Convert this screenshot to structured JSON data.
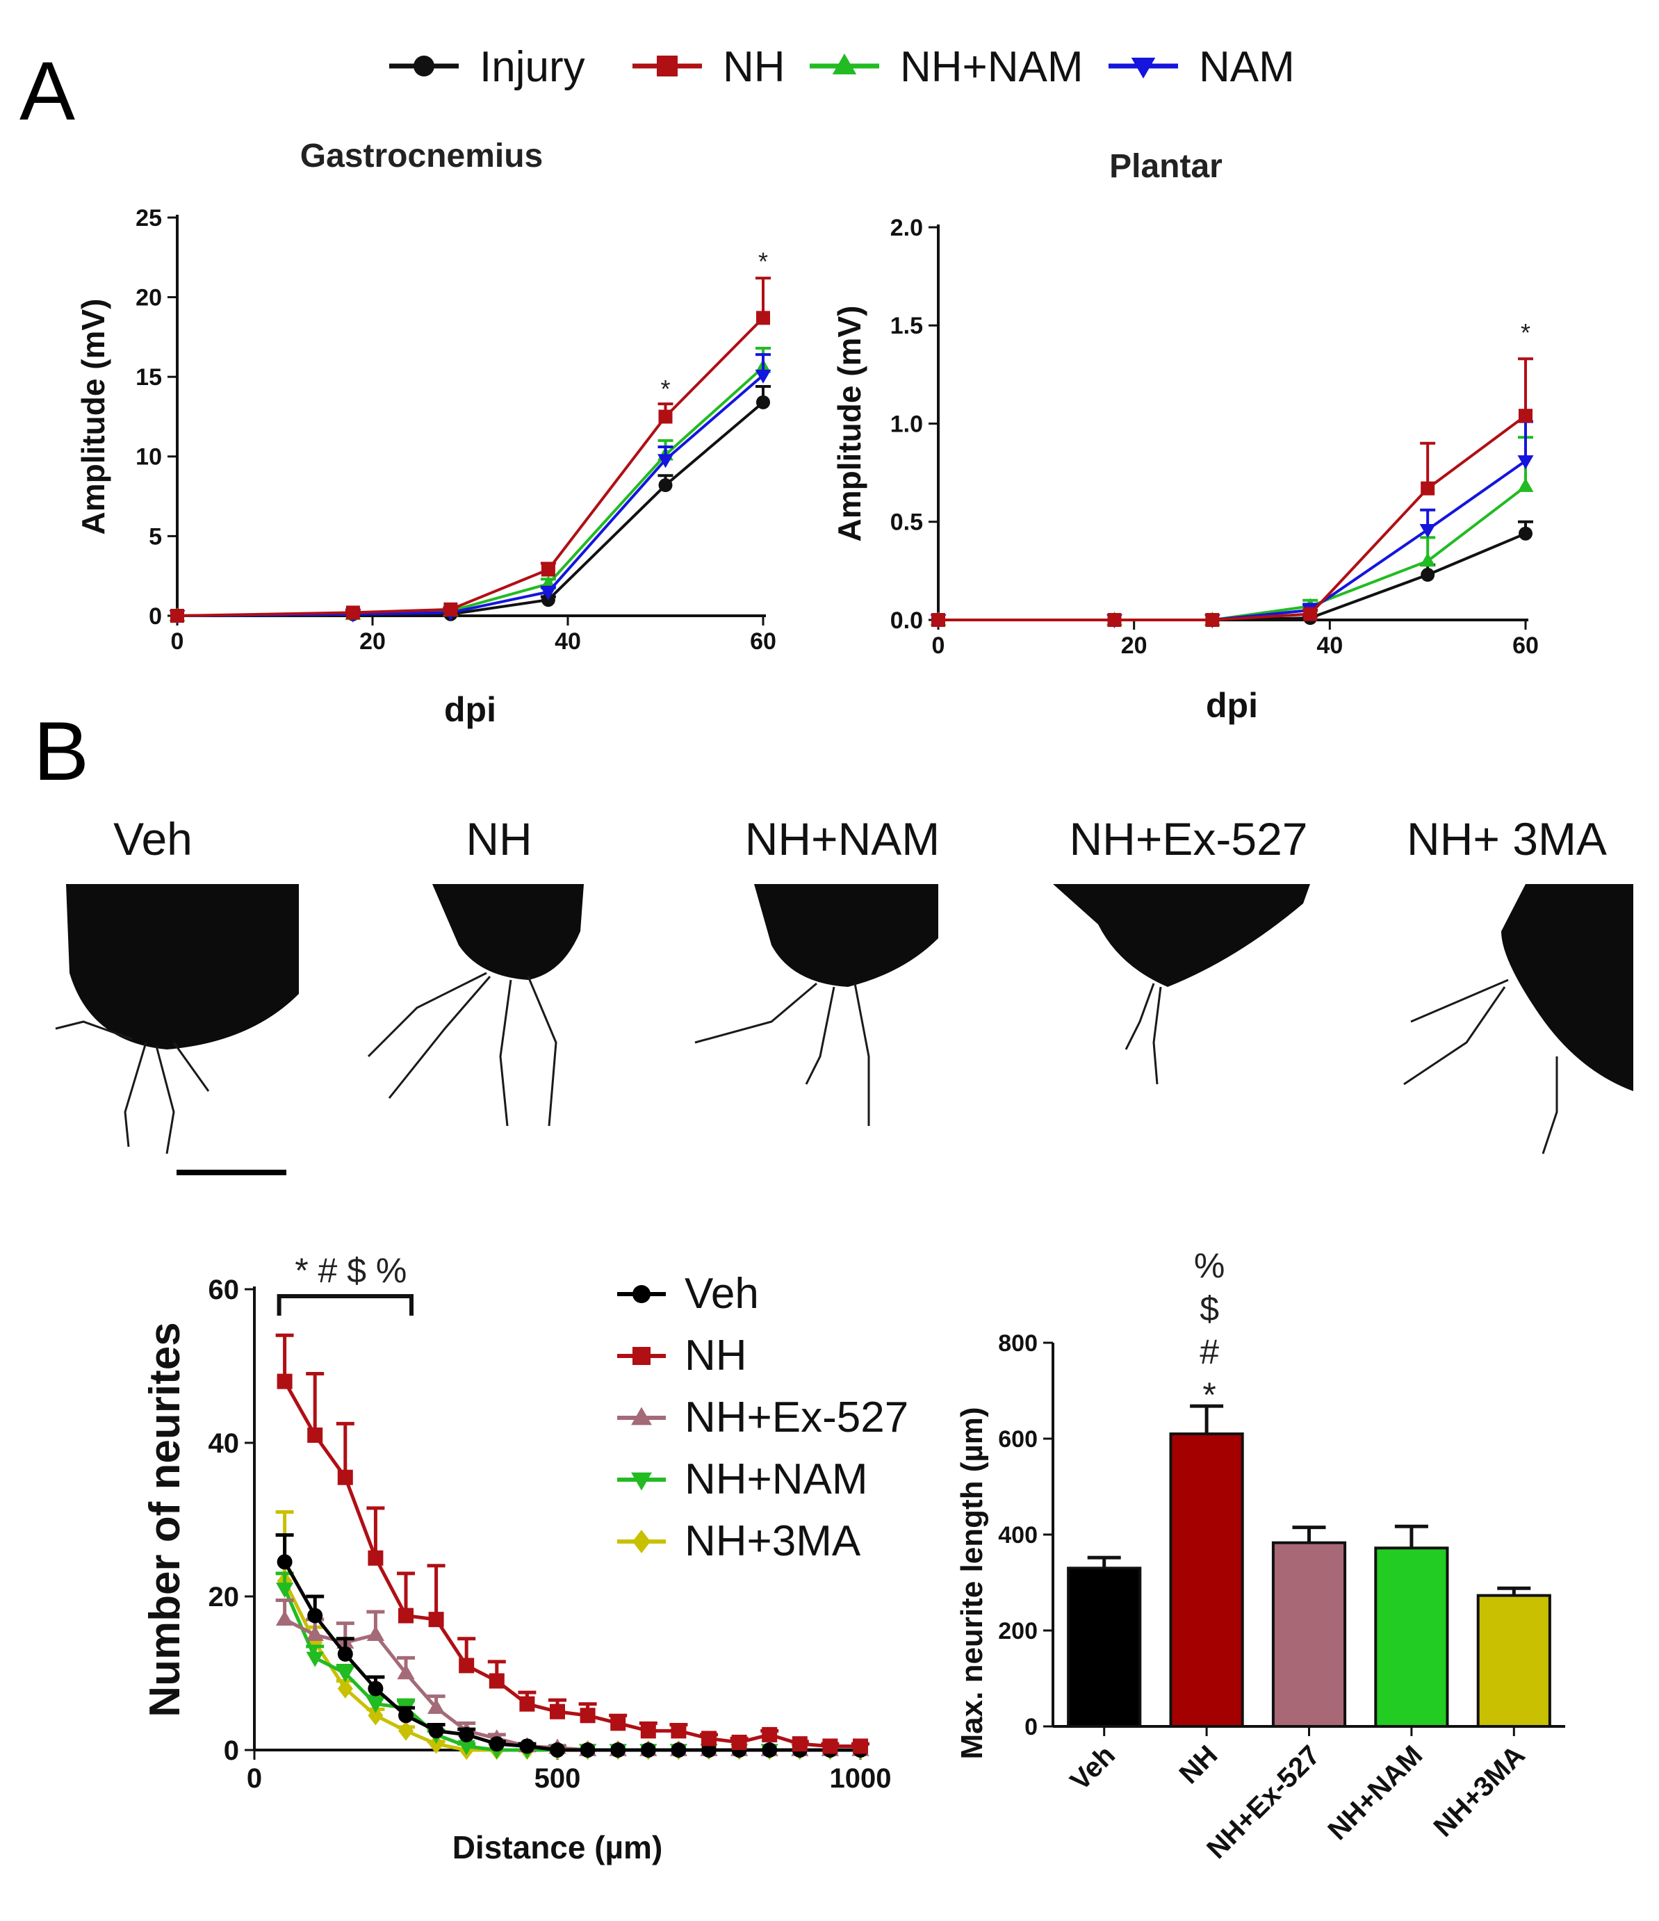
{
  "panel_letters": {
    "a": "A",
    "b": "B"
  },
  "colors": {
    "injury": "#111111",
    "nh": "#b00f14",
    "nh_nam": "#22bb22",
    "nam": "#1515dd",
    "veh": "#000000",
    "ex527": "#a46a78",
    "ma3": "#c8c000",
    "bar_veh": "#000000",
    "bar_nh": "#a50000",
    "bar_ex527": "#a86876",
    "bar_nam": "#22cc22",
    "bar_3ma": "#c8c000"
  },
  "legend_top": [
    {
      "label": "Injury",
      "key": "injury",
      "marker": "circle"
    },
    {
      "label": "NH",
      "key": "nh",
      "marker": "square"
    },
    {
      "label": "NH+NAM",
      "key": "nh_nam",
      "marker": "triangle-up"
    },
    {
      "label": "NAM",
      "key": "nam",
      "marker": "triangle-down"
    }
  ],
  "image_labels": [
    "Veh",
    "NH",
    "NH+NAM",
    "NH+Ex-527",
    "NH+ 3MA"
  ],
  "chart_data": [
    {
      "id": "gastro",
      "type": "line",
      "title": "Gastrocnemius",
      "xlabel": "dpi",
      "ylabel": "Amplitude (mV)",
      "xlim": [
        0,
        60
      ],
      "ylim": [
        0,
        25
      ],
      "xticks": [
        0,
        20,
        40,
        60
      ],
      "yticks": [
        0,
        5,
        10,
        15,
        20,
        25
      ],
      "ytick_labels": [
        "0",
        "5",
        "10",
        "15",
        "20",
        "25"
      ],
      "x": [
        0,
        18,
        28,
        38,
        50,
        60
      ],
      "series": [
        {
          "name": "Injury",
          "key": "injury",
          "marker": "circle",
          "values": [
            0,
            0.1,
            0.1,
            1.0,
            8.2,
            13.4
          ],
          "err": [
            0,
            0,
            0,
            0.2,
            0.6,
            1.0
          ]
        },
        {
          "name": "NH+NAM",
          "key": "nh_nam",
          "marker": "triangle-up",
          "values": [
            0,
            0.1,
            0.3,
            2.0,
            10.1,
            15.6
          ],
          "err": [
            0,
            0,
            0,
            0.3,
            0.9,
            1.2
          ]
        },
        {
          "name": "NAM",
          "key": "nam",
          "marker": "triangle-down",
          "values": [
            0,
            0.1,
            0.2,
            1.5,
            9.8,
            15.1
          ],
          "err": [
            0,
            0,
            0,
            0.3,
            0.8,
            1.3
          ]
        },
        {
          "name": "NH",
          "key": "nh",
          "marker": "square",
          "values": [
            0,
            0.2,
            0.4,
            2.9,
            12.5,
            18.7
          ],
          "err": [
            0,
            0.1,
            0.1,
            0.4,
            0.8,
            2.5
          ]
        }
      ],
      "annotations": [
        {
          "x": 50,
          "y": 13.7,
          "text": "*"
        },
        {
          "x": 60,
          "y": 21.7,
          "text": "*"
        }
      ]
    },
    {
      "id": "plantar",
      "type": "line",
      "title": "Plantar",
      "xlabel": "dpi",
      "ylabel": "Amplitude (mV)",
      "xlim": [
        0,
        60
      ],
      "ylim": [
        0,
        2.0
      ],
      "xticks": [
        0,
        20,
        40,
        60
      ],
      "yticks": [
        0,
        0.5,
        1.0,
        1.5,
        2.0
      ],
      "ytick_labels": [
        "0.0",
        "0.5",
        "1.0",
        "1.5",
        "2.0"
      ],
      "x": [
        0,
        18,
        28,
        38,
        50,
        60
      ],
      "series": [
        {
          "name": "Injury",
          "key": "injury",
          "marker": "circle",
          "values": [
            0,
            0,
            0,
            0.01,
            0.23,
            0.44
          ],
          "err": [
            0,
            0,
            0,
            0.01,
            0.05,
            0.06
          ]
        },
        {
          "name": "NH+NAM",
          "key": "nh_nam",
          "marker": "triangle-up",
          "values": [
            0,
            0,
            0,
            0.07,
            0.3,
            0.68
          ],
          "err": [
            0,
            0,
            0,
            0.03,
            0.12,
            0.25
          ]
        },
        {
          "name": "NAM",
          "key": "nam",
          "marker": "triangle-down",
          "values": [
            0,
            0,
            0,
            0.05,
            0.46,
            0.81
          ],
          "err": [
            0,
            0,
            0,
            0.03,
            0.1,
            0.2
          ]
        },
        {
          "name": "NH",
          "key": "nh",
          "marker": "square",
          "values": [
            0,
            0,
            0,
            0.03,
            0.67,
            1.04
          ],
          "err": [
            0,
            0,
            0,
            0.02,
            0.23,
            0.29
          ]
        }
      ],
      "annotations": [
        {
          "x": 60,
          "y": 1.42,
          "text": "*"
        }
      ]
    },
    {
      "id": "neurites",
      "type": "line",
      "title": "",
      "xlabel": "Distance (µm)",
      "ylabel": "Number of neurites",
      "xlim": [
        0,
        1000
      ],
      "ylim": [
        0,
        60
      ],
      "xticks": [
        0,
        500,
        1000
      ],
      "yticks": [
        0,
        20,
        40,
        60
      ],
      "ytick_labels": [
        "0",
        "20",
        "40",
        "60"
      ],
      "x": [
        50,
        100,
        150,
        200,
        250,
        300,
        350,
        400,
        450,
        500,
        550,
        600,
        650,
        700,
        750,
        800,
        850,
        900,
        950,
        1000
      ],
      "legend": [
        {
          "label": "Veh",
          "key": "veh",
          "marker": "circle"
        },
        {
          "label": "NH",
          "key": "nh",
          "marker": "square"
        },
        {
          "label": "NH+Ex-527",
          "key": "ex527",
          "marker": "triangle-up"
        },
        {
          "label": "NH+NAM",
          "key": "nh_nam",
          "marker": "triangle-down"
        },
        {
          "label": "NH+3MA",
          "key": "ma3",
          "marker": "diamond"
        }
      ],
      "series": [
        {
          "name": "NH+3MA",
          "key": "ma3",
          "marker": "diamond",
          "values": [
            22,
            14,
            8,
            4.5,
            2.5,
            0.8,
            0,
            0,
            0,
            0,
            0,
            0,
            0,
            0,
            0,
            0,
            0,
            0,
            0,
            0
          ],
          "err": [
            9,
            2,
            1,
            0.8,
            0.5,
            0.3,
            0,
            0,
            0,
            0,
            0,
            0,
            0,
            0,
            0,
            0,
            0,
            0,
            0,
            0
          ]
        },
        {
          "name": "NH+NAM",
          "key": "nh_nam",
          "marker": "triangle-down",
          "values": [
            21,
            12,
            10,
            6,
            5.5,
            2,
            0.5,
            0,
            0,
            0,
            0,
            0,
            0,
            0,
            0,
            0,
            0,
            0,
            0,
            0
          ],
          "err": [
            2,
            1.5,
            1,
            1,
            1,
            0.5,
            0.3,
            0,
            0,
            0,
            0,
            0,
            0,
            0,
            0,
            0,
            0,
            0,
            0,
            0
          ]
        },
        {
          "name": "NH+Ex-527",
          "key": "ex527",
          "marker": "triangle-up",
          "values": [
            17,
            15,
            14,
            15,
            10,
            5.5,
            2.5,
            1.5,
            0.5,
            0.3,
            0,
            0,
            0,
            0,
            0,
            0,
            0,
            0,
            0,
            0
          ],
          "err": [
            2.5,
            2,
            2.5,
            3,
            2,
            1.5,
            1,
            0.5,
            0.3,
            0.2,
            0,
            0,
            0,
            0,
            0,
            0,
            0,
            0,
            0,
            0
          ]
        },
        {
          "name": "Veh",
          "key": "veh",
          "marker": "circle",
          "values": [
            24.5,
            17.5,
            12.5,
            8,
            4.5,
            2.5,
            2,
            0.8,
            0.5,
            0,
            0,
            0,
            0,
            0,
            0,
            0,
            0,
            0,
            0,
            0
          ],
          "err": [
            3.5,
            2.5,
            2,
            1.5,
            1,
            0.8,
            0.7,
            0.3,
            0.3,
            0,
            0,
            0,
            0,
            0,
            0,
            0,
            0,
            0,
            0,
            0
          ]
        },
        {
          "name": "NH",
          "key": "nh",
          "marker": "square",
          "values": [
            48,
            41,
            35.5,
            25,
            17.5,
            17,
            11,
            9,
            6,
            5,
            4.5,
            3.5,
            2.5,
            2.5,
            1.5,
            1,
            2,
            0.8,
            0.5,
            0.5
          ],
          "err": [
            6,
            8,
            7,
            6.5,
            5.5,
            7,
            3.5,
            2.5,
            1.5,
            1.5,
            1.5,
            1,
            1,
            0.8,
            0.5,
            0.5,
            0.5,
            0.3,
            0.3,
            0.3
          ]
        }
      ],
      "sig_text": "* # $ %",
      "sig_range": [
        50,
        250
      ]
    },
    {
      "id": "maxlen",
      "type": "bar",
      "title": "",
      "xlabel": "",
      "ylabel": "Max. neurite length (µm)",
      "ylim": [
        0,
        800
      ],
      "yticks": [
        0,
        200,
        400,
        600,
        800
      ],
      "ytick_labels": [
        "0",
        "200",
        "400",
        "600",
        "800"
      ],
      "categories": [
        "Veh",
        "NH",
        "NH+Ex-527",
        "NH+NAM",
        "NH+3MA"
      ],
      "keys": [
        "bar_veh",
        "bar_nh",
        "bar_ex527",
        "bar_nam",
        "bar_3ma"
      ],
      "values": [
        330,
        610,
        383,
        372,
        273
      ],
      "err": [
        22,
        58,
        32,
        45,
        15
      ],
      "sig_stack": [
        "%",
        "$",
        "#",
        "*"
      ]
    }
  ]
}
